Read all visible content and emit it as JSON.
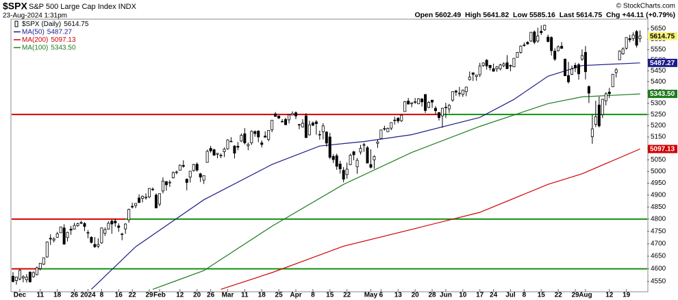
{
  "chart_data": {
    "type": "candlestick",
    "symbol": "$SPX",
    "title": "S&P 500 Large Cap Index INDX",
    "date": "23-Aug-2024 1:31pm",
    "quote": "Open 5602.49  High 5641.82  Low 5585.16  Last 5614.75  Chg +44.11 (+0.79%)",
    "copyright": "© StockCharts.com",
    "price_label": "$SPX (Daily)",
    "log_scale": true,
    "ylim": [
      4513,
      5690
    ],
    "yticks": [
      4550,
      4600,
      4650,
      4700,
      4750,
      4800,
      4850,
      4900,
      4950,
      5000,
      5050,
      5100,
      5150,
      5200,
      5250,
      5300,
      5350,
      5400,
      5450,
      5500,
      5550,
      5600,
      5650
    ],
    "xlim": [
      -0.4,
      186.1
    ],
    "xticks": [
      {
        "value": 2,
        "label": "Dec"
      },
      {
        "value": 8,
        "label": "11"
      },
      {
        "value": 13,
        "label": "18"
      },
      {
        "value": 18,
        "label": "26"
      },
      {
        "value": 22,
        "label": "2024"
      },
      {
        "value": 26,
        "label": "8"
      },
      {
        "value": 31,
        "label": "16"
      },
      {
        "value": 35,
        "label": "22"
      },
      {
        "value": 40,
        "label": "29"
      },
      {
        "value": 43,
        "label": "Feb"
      },
      {
        "value": 49,
        "label": "12"
      },
      {
        "value": 54,
        "label": "20"
      },
      {
        "value": 58,
        "label": "26"
      },
      {
        "value": 63,
        "label": "Mar"
      },
      {
        "value": 68,
        "label": "11"
      },
      {
        "value": 73,
        "label": "18"
      },
      {
        "value": 78,
        "label": "25"
      },
      {
        "value": 83,
        "label": "Apr"
      },
      {
        "value": 88,
        "label": "8"
      },
      {
        "value": 93,
        "label": "15"
      },
      {
        "value": 98,
        "label": "22"
      },
      {
        "value": 105,
        "label": "May"
      },
      {
        "value": 108,
        "label": "6"
      },
      {
        "value": 113,
        "label": "13"
      },
      {
        "value": 118,
        "label": "20"
      },
      {
        "value": 123,
        "label": "28"
      },
      {
        "value": 127,
        "label": "Jun"
      },
      {
        "value": 132,
        "label": "10"
      },
      {
        "value": 137,
        "label": "17"
      },
      {
        "value": 141,
        "label": "24"
      },
      {
        "value": 146,
        "label": "Jul"
      },
      {
        "value": 150,
        "label": "8"
      },
      {
        "value": 155,
        "label": "15"
      },
      {
        "value": 160,
        "label": "22"
      },
      {
        "value": 165,
        "label": "29"
      },
      {
        "value": 168,
        "label": "Aug"
      },
      {
        "value": 175,
        "label": "12"
      },
      {
        "value": 180,
        "label": "19"
      }
    ],
    "ohlc": [
      [
        4571,
        4587,
        4547,
        4550
      ],
      [
        4554,
        4569,
        4538,
        4568
      ],
      [
        4560,
        4599,
        4555,
        4594
      ],
      [
        4564,
        4575,
        4547,
        4569
      ],
      [
        4557,
        4579,
        4546,
        4567
      ],
      [
        4587,
        4590,
        4546,
        4549
      ],
      [
        4569,
        4590,
        4565,
        4585
      ],
      [
        4577,
        4609,
        4574,
        4604
      ],
      [
        4601,
        4623,
        4594,
        4622
      ],
      [
        4618,
        4644,
        4615,
        4643
      ],
      [
        4647,
        4709,
        4644,
        4707
      ],
      [
        4722,
        4738,
        4695,
        4719
      ],
      [
        4714,
        4726,
        4705,
        4719
      ],
      [
        4726,
        4748,
        4724,
        4740
      ],
      [
        4744,
        4768,
        4744,
        4768
      ],
      [
        4764,
        4779,
        4698,
        4698
      ],
      [
        4725,
        4748,
        4709,
        4746
      ],
      [
        4759,
        4772,
        4736,
        4755
      ],
      [
        4759,
        4785,
        4759,
        4774
      ],
      [
        4773,
        4785,
        4769,
        4781
      ],
      [
        4786,
        4793,
        4780,
        4783
      ],
      [
        4782,
        4788,
        4751,
        4770
      ],
      [
        4745,
        4755,
        4722,
        4743
      ],
      [
        4726,
        4730,
        4701,
        4705
      ],
      [
        4697,
        4727,
        4683,
        4688
      ],
      [
        4690,
        4722,
        4682,
        4697
      ],
      [
        4703,
        4765,
        4700,
        4764
      ],
      [
        4742,
        4766,
        4731,
        4757
      ],
      [
        4759,
        4791,
        4757,
        4783
      ],
      [
        4792,
        4798,
        4740,
        4780
      ],
      [
        4792,
        4802,
        4769,
        4784
      ],
      [
        4772,
        4783,
        4748,
        4766
      ],
      [
        4739,
        4744,
        4714,
        4739
      ],
      [
        4760,
        4783,
        4740,
        4780
      ],
      [
        4797,
        4843,
        4785,
        4840
      ],
      [
        4853,
        4868,
        4844,
        4850
      ],
      [
        4856,
        4866,
        4845,
        4865
      ],
      [
        4888,
        4903,
        4866,
        4869
      ],
      [
        4886,
        4898,
        4869,
        4895
      ],
      [
        4888,
        4907,
        4881,
        4891
      ],
      [
        4892,
        4929,
        4887,
        4928
      ],
      [
        4925,
        4932,
        4917,
        4925
      ],
      [
        4900,
        4907,
        4845,
        4846
      ],
      [
        4862,
        4906,
        4853,
        4906
      ],
      [
        4917,
        4975,
        4907,
        4959
      ],
      [
        4957,
        4958,
        4918,
        4943
      ],
      [
        4951,
        4963,
        4934,
        4954
      ],
      [
        4973,
        5000,
        4970,
        4995
      ],
      [
        4995,
        5004,
        4988,
        4998
      ],
      [
        5005,
        5030,
        5004,
        5027
      ],
      [
        5026,
        5048,
        5016,
        5022
      ],
      [
        4967,
        4970,
        4920,
        4953
      ],
      [
        4976,
        5002,
        4953,
        5001
      ],
      [
        5004,
        5033,
        4999,
        5030
      ],
      [
        5031,
        5039,
        4999,
        5006
      ],
      [
        4990,
        4994,
        4955,
        4976
      ],
      [
        4963,
        4983,
        4947,
        4982
      ],
      [
        5039,
        5094,
        5038,
        5087
      ],
      [
        5100,
        5111,
        5081,
        5089
      ],
      [
        5094,
        5098,
        5068,
        5070
      ],
      [
        5074,
        5080,
        5057,
        5078
      ],
      [
        5067,
        5078,
        5057,
        5070
      ],
      [
        5085,
        5104,
        5062,
        5096
      ],
      [
        5098,
        5140,
        5094,
        5137
      ],
      [
        5130,
        5149,
        5127,
        5131
      ],
      [
        5110,
        5114,
        5056,
        5079
      ],
      [
        5109,
        5128,
        5092,
        5105
      ],
      [
        5132,
        5165,
        5128,
        5157
      ],
      [
        5164,
        5189,
        5117,
        5124
      ],
      [
        5111,
        5125,
        5092,
        5117
      ],
      [
        5124,
        5179,
        5115,
        5175
      ],
      [
        5174,
        5179,
        5151,
        5165
      ],
      [
        5176,
        5180,
        5127,
        5150
      ],
      [
        5124,
        5135,
        5104,
        5117
      ],
      [
        5154,
        5175,
        5147,
        5149
      ],
      [
        5139,
        5180,
        5131,
        5179
      ],
      [
        5182,
        5225,
        5171,
        5224
      ],
      [
        5253,
        5261,
        5240,
        5241
      ],
      [
        5243,
        5246,
        5230,
        5234
      ],
      [
        5219,
        5229,
        5216,
        5218
      ],
      [
        5228,
        5236,
        5203,
        5204
      ],
      [
        5226,
        5249,
        5210,
        5248
      ],
      [
        5248,
        5264,
        5246,
        5254
      ],
      [
        5258,
        5264,
        5229,
        5243
      ],
      [
        5205,
        5208,
        5184,
        5205
      ],
      [
        5194,
        5229,
        5193,
        5211
      ],
      [
        5244,
        5256,
        5146,
        5147
      ],
      [
        5159,
        5222,
        5157,
        5204
      ],
      [
        5212,
        5219,
        5198,
        5202
      ],
      [
        5217,
        5225,
        5160,
        5209
      ],
      [
        5160,
        5178,
        5138,
        5161
      ],
      [
        5173,
        5211,
        5139,
        5199
      ],
      [
        5172,
        5175,
        5107,
        5123
      ],
      [
        5150,
        5168,
        5053,
        5061
      ],
      [
        5065,
        5075,
        5036,
        5051
      ],
      [
        5068,
        5077,
        5007,
        5022
      ],
      [
        5032,
        5046,
        4991,
        5011
      ],
      [
        5005,
        5019,
        4954,
        4967
      ],
      [
        4987,
        5038,
        4969,
        5010
      ],
      [
        5029,
        5076,
        5028,
        5070
      ],
      [
        5085,
        5089,
        5048,
        5072
      ],
      [
        5020,
        5058,
        4990,
        5048
      ],
      [
        5084,
        5115,
        5073,
        5100
      ],
      [
        5114,
        5124,
        5085,
        5116
      ],
      [
        5103,
        5110,
        5035,
        5036
      ],
      [
        5030,
        5096,
        5013,
        5018
      ],
      [
        5050,
        5070,
        5011,
        5064
      ],
      [
        5122,
        5139,
        5102,
        5128
      ],
      [
        5143,
        5181,
        5142,
        5181
      ],
      [
        5187,
        5200,
        5178,
        5187
      ],
      [
        5173,
        5192,
        5173,
        5188
      ],
      [
        5189,
        5215,
        5180,
        5214
      ],
      [
        5225,
        5240,
        5205,
        5223
      ],
      [
        5233,
        5238,
        5211,
        5221
      ],
      [
        5222,
        5250,
        5217,
        5247
      ],
      [
        5263,
        5311,
        5263,
        5308
      ],
      [
        5311,
        5325,
        5296,
        5297
      ],
      [
        5299,
        5305,
        5283,
        5303
      ],
      [
        5305,
        5325,
        5298,
        5308
      ],
      [
        5298,
        5324,
        5297,
        5321
      ],
      [
        5320,
        5325,
        5286,
        5307
      ],
      [
        5341,
        5342,
        5257,
        5268
      ],
      [
        5282,
        5311,
        5278,
        5305
      ],
      [
        5315,
        5316,
        5280,
        5306
      ],
      [
        5278,
        5288,
        5250,
        5267
      ],
      [
        5259,
        5260,
        5223,
        5236
      ],
      [
        5244,
        5280,
        5191,
        5278
      ],
      [
        5283,
        5303,
        5234,
        5283
      ],
      [
        5275,
        5298,
        5257,
        5291
      ],
      [
        5315,
        5355,
        5308,
        5354
      ],
      [
        5357,
        5362,
        5335,
        5352
      ],
      [
        5344,
        5376,
        5331,
        5347
      ],
      [
        5341,
        5363,
        5330,
        5361
      ],
      [
        5354,
        5376,
        5333,
        5375
      ],
      [
        5409,
        5447,
        5405,
        5421
      ],
      [
        5441,
        5442,
        5403,
        5434
      ],
      [
        5424,
        5432,
        5404,
        5431
      ],
      [
        5432,
        5488,
        5421,
        5473
      ],
      [
        5476,
        5490,
        5468,
        5487
      ],
      [
        5500,
        5505,
        5456,
        5473
      ],
      [
        5476,
        5478,
        5452,
        5465
      ],
      [
        5460,
        5484,
        5447,
        5448
      ],
      [
        5459,
        5472,
        5446,
        5469
      ],
      [
        5460,
        5483,
        5452,
        5478
      ],
      [
        5474,
        5490,
        5467,
        5483
      ],
      [
        5488,
        5524,
        5459,
        5460
      ],
      [
        5472,
        5479,
        5448,
        5475
      ],
      [
        5469,
        5510,
        5467,
        5509
      ],
      [
        5513,
        5539,
        5513,
        5537
      ],
      [
        5537,
        5570,
        5531,
        5567
      ],
      [
        5572,
        5584,
        5564,
        5572
      ],
      [
        5585,
        5590,
        5574,
        5577
      ],
      [
        5591,
        5635,
        5587,
        5633
      ],
      [
        5635,
        5642,
        5576,
        5585
      ],
      [
        5591,
        5655,
        5583,
        5615
      ],
      [
        5638,
        5667,
        5620,
        5631
      ],
      [
        5645,
        5669,
        5640,
        5667
      ],
      [
        5610,
        5622,
        5584,
        5589
      ],
      [
        5608,
        5614,
        5522,
        5545
      ],
      [
        5543,
        5557,
        5497,
        5505
      ],
      [
        5545,
        5570,
        5541,
        5564
      ],
      [
        5566,
        5586,
        5554,
        5556
      ],
      [
        5505,
        5508,
        5426,
        5427
      ],
      [
        5428,
        5492,
        5391,
        5399
      ],
      [
        5434,
        5475,
        5430,
        5459
      ],
      [
        5476,
        5488,
        5444,
        5464
      ],
      [
        5479,
        5487,
        5409,
        5436
      ],
      [
        5505,
        5551,
        5497,
        5522
      ],
      [
        5537,
        5567,
        5410,
        5446
      ],
      [
        5377,
        5383,
        5302,
        5347
      ],
      [
        5151,
        5250,
        5120,
        5186
      ],
      [
        5206,
        5312,
        5194,
        5240
      ],
      [
        5293,
        5331,
        5192,
        5199
      ],
      [
        5250,
        5321,
        5234,
        5319
      ],
      [
        5312,
        5351,
        5291,
        5344
      ],
      [
        5352,
        5371,
        5325,
        5344
      ],
      [
        5376,
        5436,
        5376,
        5434
      ],
      [
        5442,
        5463,
        5419,
        5455
      ],
      [
        5502,
        5546,
        5502,
        5543
      ],
      [
        5530,
        5561,
        5525,
        5554
      ],
      [
        5557,
        5608,
        5550,
        5608
      ],
      [
        5603,
        5621,
        5585,
        5597
      ],
      [
        5603,
        5633,
        5591,
        5620
      ],
      [
        5637,
        5644,
        5560,
        5571
      ],
      [
        5602.49,
        5641.82,
        5585.16,
        5614.75
      ]
    ],
    "series": [
      {
        "name": "MA(50)",
        "color": "#1c1c8a",
        "last_label": "5487.27",
        "x": [
          23,
          36,
          56,
          76,
          90,
          103,
          117,
          137,
          147,
          157,
          167,
          184
        ],
        "values": [
          4520,
          4688,
          4880,
          5030,
          5110,
          5130,
          5160,
          5237,
          5318,
          5425,
          5475,
          5487.27
        ]
      },
      {
        "name": "MA(200)",
        "color": "#d00000",
        "last_label": "5097.13",
        "x": [
          61,
          76,
          97,
          117,
          137,
          157,
          167,
          184
        ],
        "values": [
          4520,
          4585,
          4690,
          4758,
          4828,
          4945,
          4990,
          5097.13
        ]
      },
      {
        "name": "MA(100)",
        "color": "#1e7b1e",
        "last_label": "5343.50",
        "x": [
          41,
          56,
          76,
          97,
          117,
          137,
          157,
          167,
          184
        ],
        "values": [
          4520,
          4593,
          4771,
          4945,
          5082,
          5197,
          5299,
          5330,
          5343.5
        ]
      }
    ],
    "hlines": [
      {
        "value": 5250,
        "switch_x": 126,
        "colors": [
          "#d40000",
          "#109010"
        ]
      },
      {
        "value": 4800,
        "switch_x": 33,
        "colors": [
          "#d40000",
          "#109010"
        ]
      },
      {
        "value": 4600,
        "switch_x": 8,
        "colors": [
          "#d40000",
          "#109010"
        ]
      }
    ]
  }
}
